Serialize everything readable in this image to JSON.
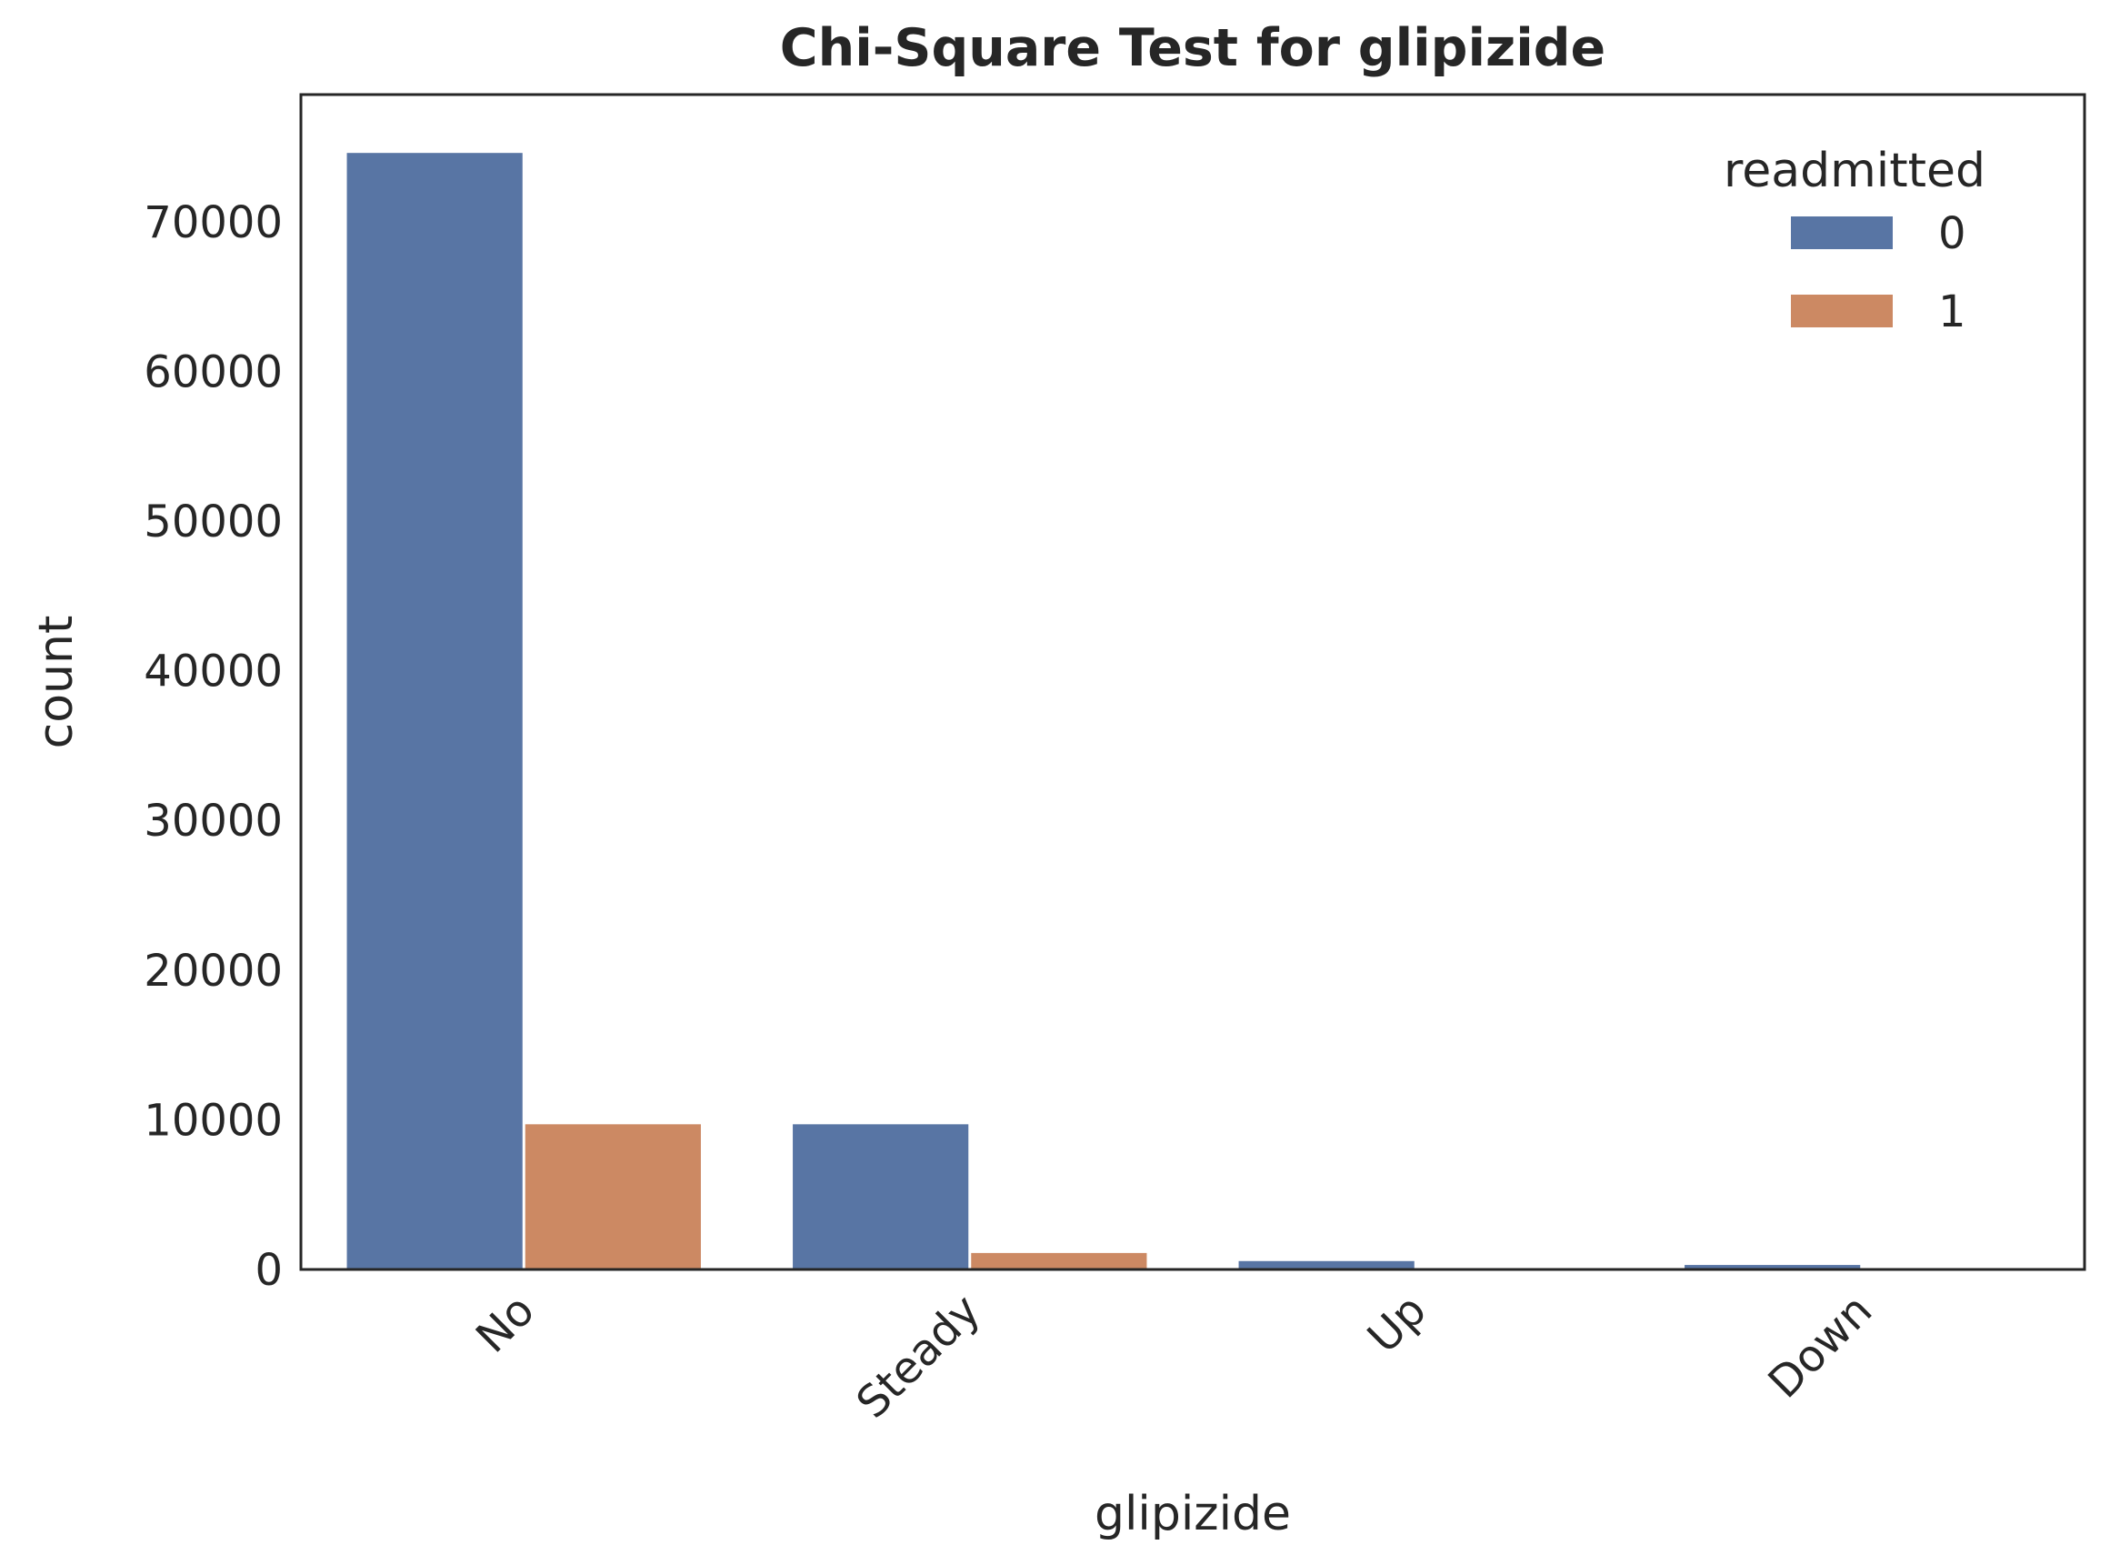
{
  "chart_data": {
    "type": "bar",
    "title": "Chi-Square Test for glipizide",
    "xlabel": "glipizide",
    "ylabel": "count",
    "categories": [
      "No",
      "Steady",
      "Up",
      "Down"
    ],
    "series": [
      {
        "name": "0",
        "values": [
          74600,
          9700,
          560,
          300
        ],
        "color": "#5875a4"
      },
      {
        "name": "1",
        "values": [
          9700,
          1100,
          40,
          20
        ],
        "color": "#cc8963"
      }
    ],
    "ylim": [
      0,
      78500
    ],
    "yticks": [
      0,
      10000,
      20000,
      30000,
      40000,
      50000,
      60000,
      70000
    ],
    "ytick_labels": [
      "0",
      "10000",
      "20000",
      "30000",
      "40000",
      "50000",
      "60000",
      "70000"
    ],
    "legend": {
      "title": "readmitted",
      "placement": "top-right"
    },
    "grid": false
  }
}
